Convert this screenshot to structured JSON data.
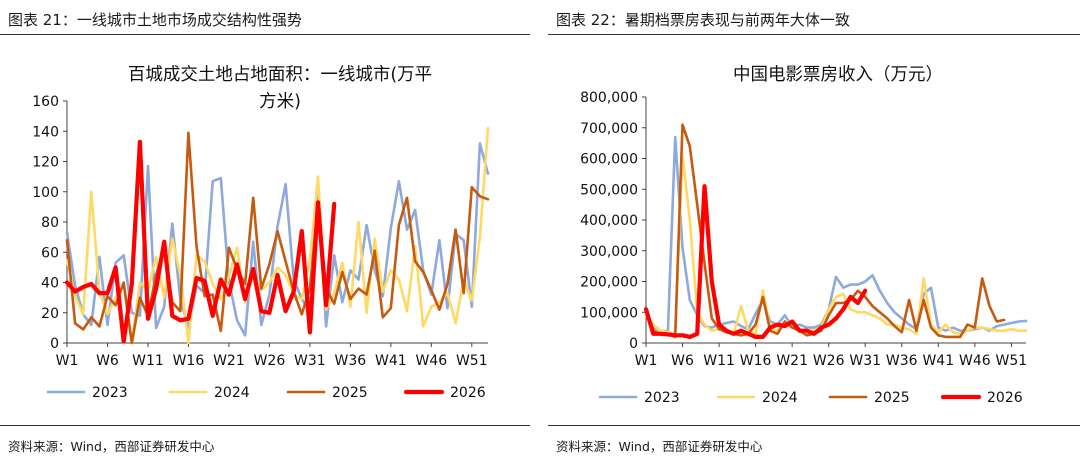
{
  "figures": [
    {
      "header": "图表 21：一线城市土地市场成交结构性强势",
      "source": "资料来源：Wind，西部证券研发中心"
    },
    {
      "header": "图表 22：暑期档票房表现与前两年大体一致",
      "source": "资料来源：Wind，西部证券研发中心"
    }
  ],
  "chart_data": [
    {
      "type": "line",
      "title_lines": [
        "百城成交土地占地面积：一线城市(万平",
        "方米)"
      ],
      "xlabel": "",
      "ylabel": "",
      "ylim": [
        0,
        160
      ],
      "yticks": [
        "0",
        "20",
        "40",
        "60",
        "80",
        "100",
        "120",
        "140",
        "160"
      ],
      "xlim": [
        1,
        53
      ],
      "xticks": [
        {
          "x": 1,
          "label": "W1"
        },
        {
          "x": 6,
          "label": "W6"
        },
        {
          "x": 11,
          "label": "W11"
        },
        {
          "x": 16,
          "label": "W16"
        },
        {
          "x": 21,
          "label": "W21"
        },
        {
          "x": 26,
          "label": "W26"
        },
        {
          "x": 31,
          "label": "W31"
        },
        {
          "x": 36,
          "label": "W36"
        },
        {
          "x": 41,
          "label": "W41"
        },
        {
          "x": 46,
          "label": "W46"
        },
        {
          "x": 51,
          "label": "W51"
        }
      ],
      "grid": false,
      "legend_position": "bottom",
      "series": [
        {
          "name": "2023",
          "color": "#8EA9DB",
          "width": 2.6,
          "values": [
            73,
            38,
            19,
            12,
            57,
            12,
            53,
            58,
            20,
            18,
            117,
            10,
            24,
            79,
            29,
            10,
            38,
            33,
            107,
            109,
            41,
            15,
            5,
            67,
            12,
            32,
            77,
            105,
            42,
            29,
            20,
            99,
            11,
            58,
            27,
            48,
            42,
            78,
            48,
            31,
            76,
            107,
            75,
            88,
            48,
            32,
            68,
            23,
            72,
            68,
            24,
            132,
            112
          ]
        },
        {
          "name": "2024",
          "color": "#FFD966",
          "width": 2.6,
          "values": [
            55,
            31,
            19,
            100,
            34,
            19,
            30,
            38,
            0,
            40,
            35,
            57,
            30,
            69,
            45,
            0,
            58,
            54,
            39,
            29,
            44,
            63,
            27,
            45,
            35,
            40,
            50,
            45,
            32,
            29,
            55,
            110,
            22,
            33,
            53,
            24,
            80,
            20,
            69,
            34,
            48,
            42,
            21,
            64,
            11,
            24,
            27,
            33,
            13,
            42,
            28,
            70,
            142
          ]
        },
        {
          "name": "2025",
          "color": "#C55A11",
          "width": 2.6,
          "values": [
            68,
            13,
            9,
            17,
            11,
            31,
            25,
            40,
            0,
            30,
            18,
            45,
            63,
            27,
            21,
            139,
            64,
            31,
            32,
            8,
            63,
            49,
            39,
            96,
            36,
            52,
            74,
            54,
            34,
            19,
            36,
            93,
            36,
            26,
            47,
            29,
            36,
            32,
            61,
            17,
            23,
            78,
            96,
            54,
            47,
            35,
            22,
            39,
            75,
            33,
            103,
            97,
            95
          ]
        },
        {
          "name": "2026",
          "color": "#FF0000",
          "width": 4.2,
          "values": [
            40,
            34,
            37,
            39,
            33,
            33,
            50,
            1,
            39,
            133,
            16,
            36,
            67,
            18,
            15,
            16,
            43,
            41,
            18,
            42,
            32,
            52,
            29,
            49,
            21,
            20,
            45,
            21,
            34,
            74,
            7,
            93,
            25,
            92
          ]
        }
      ]
    },
    {
      "type": "line",
      "title_lines": [
        "中国电影票房收入（万元）"
      ],
      "xlabel": "",
      "ylabel": "",
      "ylim": [
        0,
        800000
      ],
      "yticks": [
        "0",
        "100,000",
        "200,000",
        "300,000",
        "400,000",
        "500,000",
        "600,000",
        "700,000",
        "800,000"
      ],
      "xlim": [
        1,
        53
      ],
      "xticks": [
        {
          "x": 1,
          "label": "W1"
        },
        {
          "x": 6,
          "label": "W6"
        },
        {
          "x": 11,
          "label": "W11"
        },
        {
          "x": 16,
          "label": "W16"
        },
        {
          "x": 21,
          "label": "W21"
        },
        {
          "x": 26,
          "label": "W26"
        },
        {
          "x": 31,
          "label": "W31"
        },
        {
          "x": 36,
          "label": "W36"
        },
        {
          "x": 41,
          "label": "W41"
        },
        {
          "x": 46,
          "label": "W46"
        },
        {
          "x": 51,
          "label": "W51"
        }
      ],
      "grid": false,
      "legend_position": "bottom",
      "series": [
        {
          "name": "2023",
          "color": "#8EA9DB",
          "width": 2.6,
          "values": [
            90000,
            50000,
            40000,
            38000,
            670000,
            310000,
            140000,
            90000,
            55000,
            50000,
            60000,
            65000,
            70000,
            55000,
            45000,
            95000,
            140000,
            70000,
            60000,
            90000,
            55000,
            60000,
            50000,
            50000,
            60000,
            110000,
            215000,
            180000,
            190000,
            190000,
            200000,
            220000,
            170000,
            130000,
            100000,
            80000,
            60000,
            45000,
            160000,
            180000,
            50000,
            40000,
            50000,
            40000,
            40000,
            45000,
            50000,
            40000,
            55000,
            60000,
            65000,
            70000,
            72000
          ]
        },
        {
          "name": "2024",
          "color": "#FFD966",
          "width": 2.6,
          "values": [
            90000,
            60000,
            40000,
            35000,
            30000,
            610000,
            400000,
            100000,
            60000,
            40000,
            45000,
            40000,
            30000,
            120000,
            40000,
            30000,
            170000,
            50000,
            40000,
            70000,
            50000,
            40000,
            40000,
            40000,
            50000,
            110000,
            150000,
            160000,
            110000,
            100000,
            100000,
            90000,
            80000,
            60000,
            60000,
            50000,
            45000,
            30000,
            210000,
            60000,
            35000,
            60000,
            35000,
            30000,
            40000,
            50000,
            50000,
            45000,
            40000,
            40000,
            45000,
            40000,
            40000
          ]
        },
        {
          "name": "2025",
          "color": "#C55A11",
          "width": 2.6,
          "values": [
            110000,
            40000,
            30000,
            30000,
            20000,
            710000,
            640000,
            450000,
            260000,
            80000,
            45000,
            35000,
            30000,
            25000,
            30000,
            60000,
            150000,
            40000,
            30000,
            70000,
            50000,
            40000,
            25000,
            30000,
            40000,
            90000,
            130000,
            130000,
            140000,
            170000,
            150000,
            120000,
            100000,
            80000,
            55000,
            35000,
            140000,
            40000,
            140000,
            50000,
            25000,
            20000,
            20000,
            20000,
            60000,
            50000,
            210000,
            120000,
            70000,
            75000
          ]
        },
        {
          "name": "2026",
          "color": "#FF0000",
          "width": 4.2,
          "values": [
            110000,
            30000,
            30000,
            28000,
            25000,
            25000,
            20000,
            30000,
            510000,
            200000,
            60000,
            40000,
            30000,
            40000,
            30000,
            20000,
            20000,
            50000,
            60000,
            55000,
            70000,
            40000,
            40000,
            30000,
            50000,
            60000,
            80000,
            110000,
            150000,
            130000,
            170000
          ]
        }
      ]
    }
  ]
}
